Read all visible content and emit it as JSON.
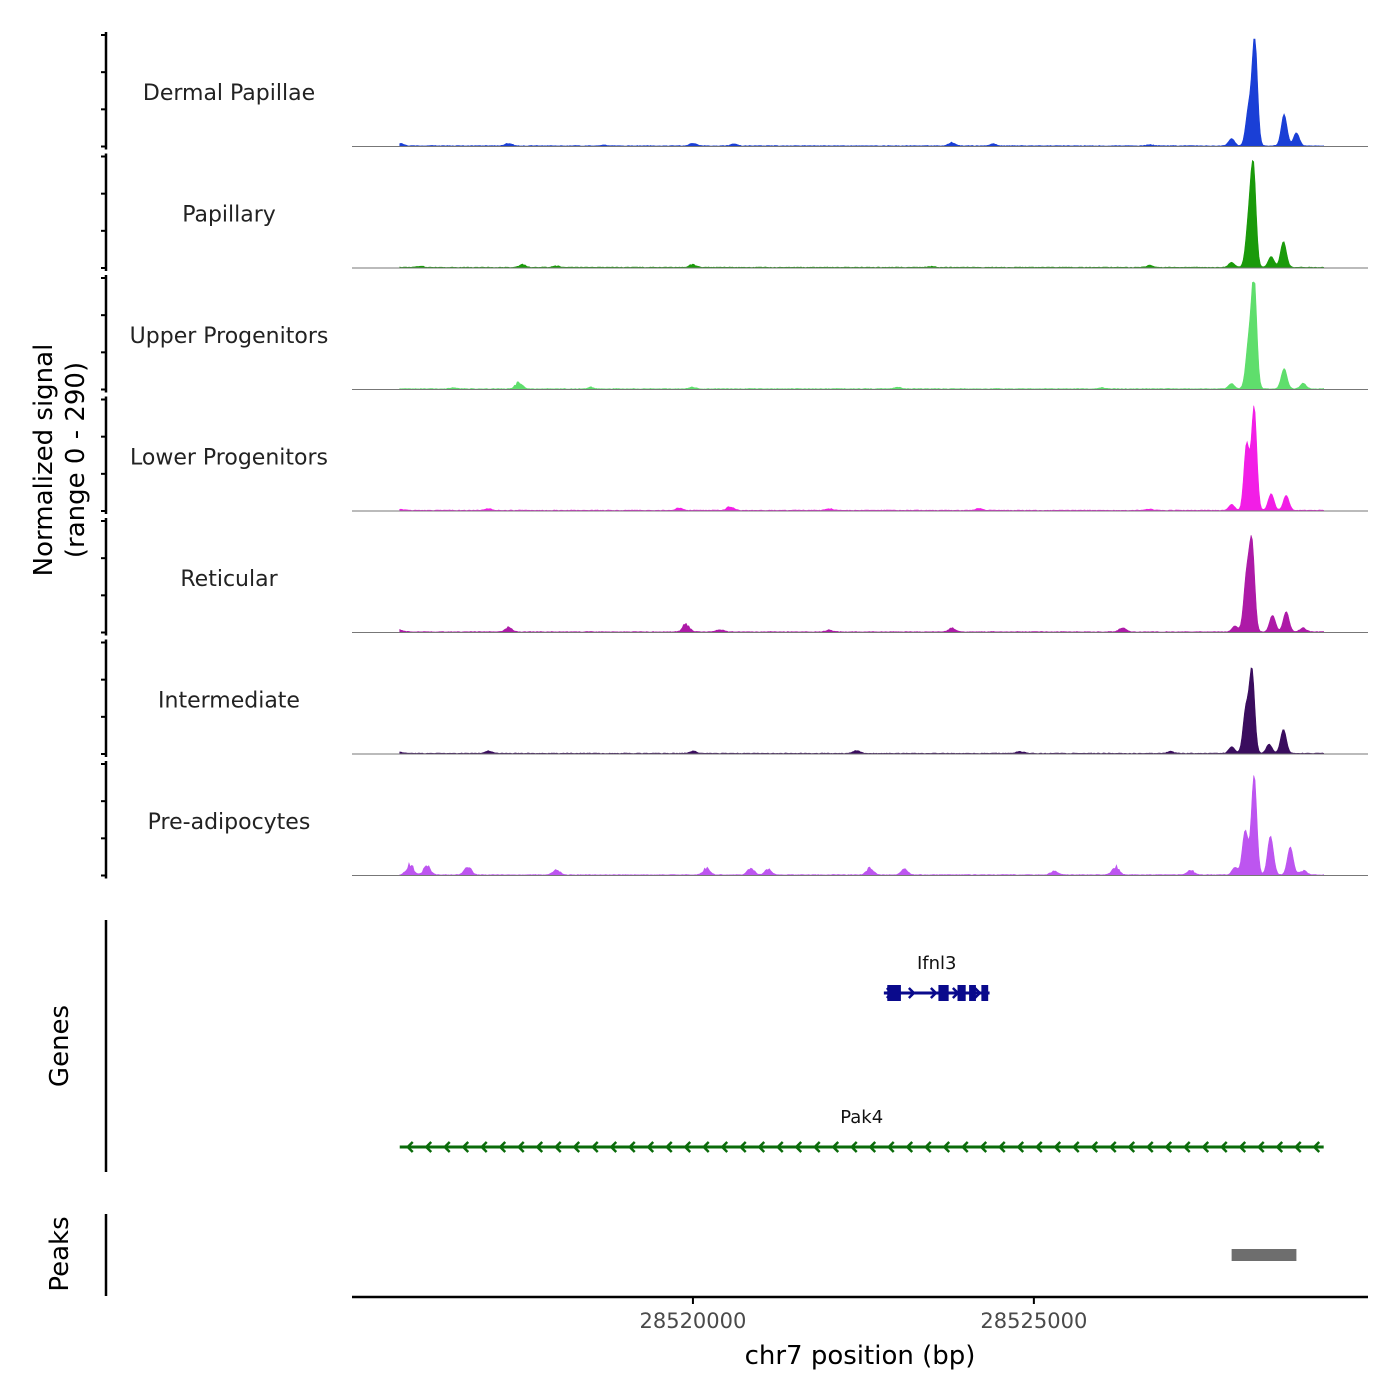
{
  "chart_data": {
    "type": "area",
    "title": "",
    "ylabel_line1": "Normalized signal",
    "ylabel_line2": "(range 0 - 290)",
    "y_range": [
      0,
      290
    ],
    "xlabel": "chr7 position (bp)",
    "x_range": [
      28515000,
      28529900
    ],
    "x_ticks": [
      28520000,
      28525000
    ],
    "x_tick_labels": [
      "28520000",
      "28525000"
    ],
    "tracks": [
      {
        "name": "Dermal Papillae",
        "color": "#1a3fd6",
        "background": [
          [
            28515700,
            6
          ],
          [
            28517300,
            8
          ],
          [
            28518700,
            2
          ],
          [
            28520000,
            7
          ],
          [
            28520600,
            5
          ],
          [
            28523800,
            8
          ],
          [
            28524400,
            5
          ],
          [
            28526700,
            3
          ]
        ],
        "peaks": [
          [
            28528240,
            290
          ],
          [
            28528150,
            100
          ],
          [
            28528670,
            85
          ],
          [
            28528850,
            35
          ],
          [
            28527900,
            20
          ]
        ]
      },
      {
        "name": "Papillary",
        "color": "#1a9a0a",
        "background": [
          [
            28516000,
            3
          ],
          [
            28517500,
            7
          ],
          [
            28518000,
            4
          ],
          [
            28520000,
            8
          ],
          [
            28523500,
            3
          ],
          [
            28526700,
            5
          ]
        ],
        "peaks": [
          [
            28528220,
            260
          ],
          [
            28528150,
            120
          ],
          [
            28528660,
            70
          ],
          [
            28528480,
            30
          ],
          [
            28527900,
            14
          ]
        ]
      },
      {
        "name": "Upper Progenitors",
        "color": "#5fde6c",
        "background": [
          [
            28516500,
            3
          ],
          [
            28517450,
            18
          ],
          [
            28518500,
            4
          ],
          [
            28520000,
            4
          ],
          [
            28523000,
            4
          ],
          [
            28526000,
            3
          ]
        ],
        "peaks": [
          [
            28528230,
            290
          ],
          [
            28528150,
            120
          ],
          [
            28528670,
            55
          ],
          [
            28528950,
            15
          ],
          [
            28527900,
            14
          ]
        ]
      },
      {
        "name": "Lower Progenitors",
        "color": "#f21ee6",
        "background": [
          [
            28515700,
            3
          ],
          [
            28517000,
            4
          ],
          [
            28519800,
            6
          ],
          [
            28520550,
            10
          ],
          [
            28522000,
            4
          ],
          [
            28524200,
            5
          ],
          [
            28526700,
            3
          ]
        ],
        "peaks": [
          [
            28528230,
            280
          ],
          [
            28528120,
            180
          ],
          [
            28528480,
            45
          ],
          [
            28528700,
            40
          ],
          [
            28527900,
            16
          ]
        ]
      },
      {
        "name": "Reticular",
        "color": "#ad1aa7",
        "background": [
          [
            28515700,
            5
          ],
          [
            28517300,
            12
          ],
          [
            28519900,
            22
          ],
          [
            28520400,
            6
          ],
          [
            28522000,
            5
          ],
          [
            28523800,
            10
          ],
          [
            28526300,
            12
          ],
          [
            28528950,
            10
          ]
        ],
        "peaks": [
          [
            28528200,
            230
          ],
          [
            28528120,
            150
          ],
          [
            28528500,
            45
          ],
          [
            28528700,
            55
          ],
          [
            28527950,
            16
          ]
        ]
      },
      {
        "name": "Intermediate",
        "color": "#3a0d5e",
        "background": [
          [
            28515700,
            4
          ],
          [
            28517000,
            6
          ],
          [
            28520000,
            6
          ],
          [
            28522400,
            7
          ],
          [
            28524800,
            6
          ],
          [
            28527000,
            5
          ]
        ],
        "peaks": [
          [
            28528200,
            220
          ],
          [
            28528110,
            120
          ],
          [
            28528660,
            65
          ],
          [
            28528450,
            25
          ],
          [
            28527900,
            18
          ]
        ]
      },
      {
        "name": "Pre-adipocytes",
        "color": "#bd55f0",
        "background": [
          [
            28515850,
            28
          ],
          [
            28516100,
            25
          ],
          [
            28516700,
            22
          ],
          [
            28518000,
            15
          ],
          [
            28520200,
            18
          ],
          [
            28520850,
            18
          ],
          [
            28521100,
            15
          ],
          [
            28522600,
            20
          ],
          [
            28523100,
            15
          ],
          [
            28525300,
            10
          ],
          [
            28526200,
            22
          ],
          [
            28527300,
            12
          ],
          [
            28528950,
            12
          ]
        ],
        "peaks": [
          [
            28528230,
            270
          ],
          [
            28528100,
            120
          ],
          [
            28528470,
            105
          ],
          [
            28528760,
            75
          ],
          [
            28527950,
            20
          ]
        ]
      }
    ],
    "genes_label": "Genes",
    "genes": [
      {
        "name": "Ifnl3",
        "start": 28522800,
        "end": 28524350,
        "strand": "+",
        "color": "#0a0a8c",
        "exons": [
          [
            28522850,
            28523050
          ],
          [
            28523600,
            28523750
          ],
          [
            28523880,
            28524000
          ],
          [
            28524050,
            28524150
          ],
          [
            28524230,
            28524330
          ]
        ]
      },
      {
        "name": "Pak4",
        "start": 28515700,
        "end": 28529250,
        "strand": "-",
        "color": "#0a6b0a",
        "exons": []
      }
    ],
    "peaks_label": "Peaks",
    "peaks": [
      [
        28527900,
        28528850
      ]
    ],
    "peak_color": "#6e6e6e"
  }
}
